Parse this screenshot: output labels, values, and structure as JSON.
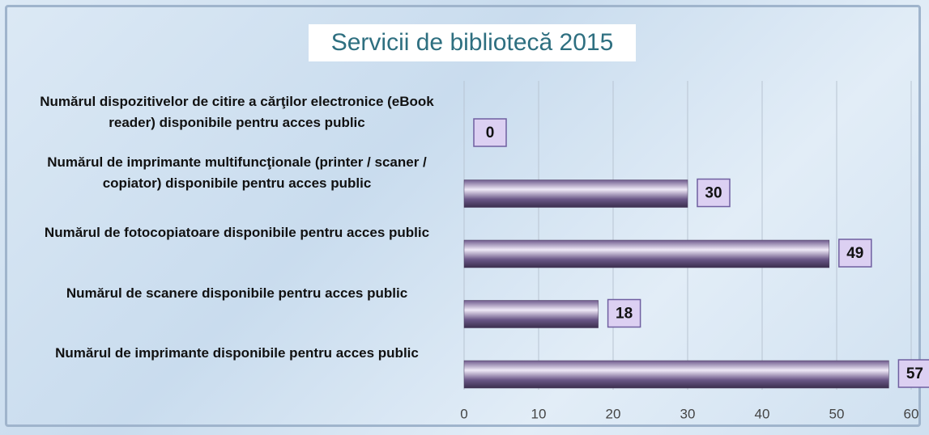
{
  "chart_data": {
    "type": "bar",
    "orientation": "horizontal",
    "title": "Servicii de bibliotecă 2015",
    "categories": [
      "Numărul dispozitivelor de citire a cărţilor electronice (eBook reader) disponibile pentru acces public",
      "Numărul de imprimante multifuncţionale (printer / scaner / copiator) disponibile pentru acces public",
      "Numărul de fotocopiatoare disponibile pentru acces public",
      "Numărul de scanere disponibile pentru acces public",
      "Numărul de imprimante disponibile pentru acces public"
    ],
    "values": [
      0,
      30,
      49,
      18,
      57
    ],
    "color": "#7d6a99",
    "xlim": [
      0,
      60
    ],
    "xticks": [
      0,
      10,
      20,
      30,
      40,
      50,
      60
    ],
    "grid": true
  }
}
